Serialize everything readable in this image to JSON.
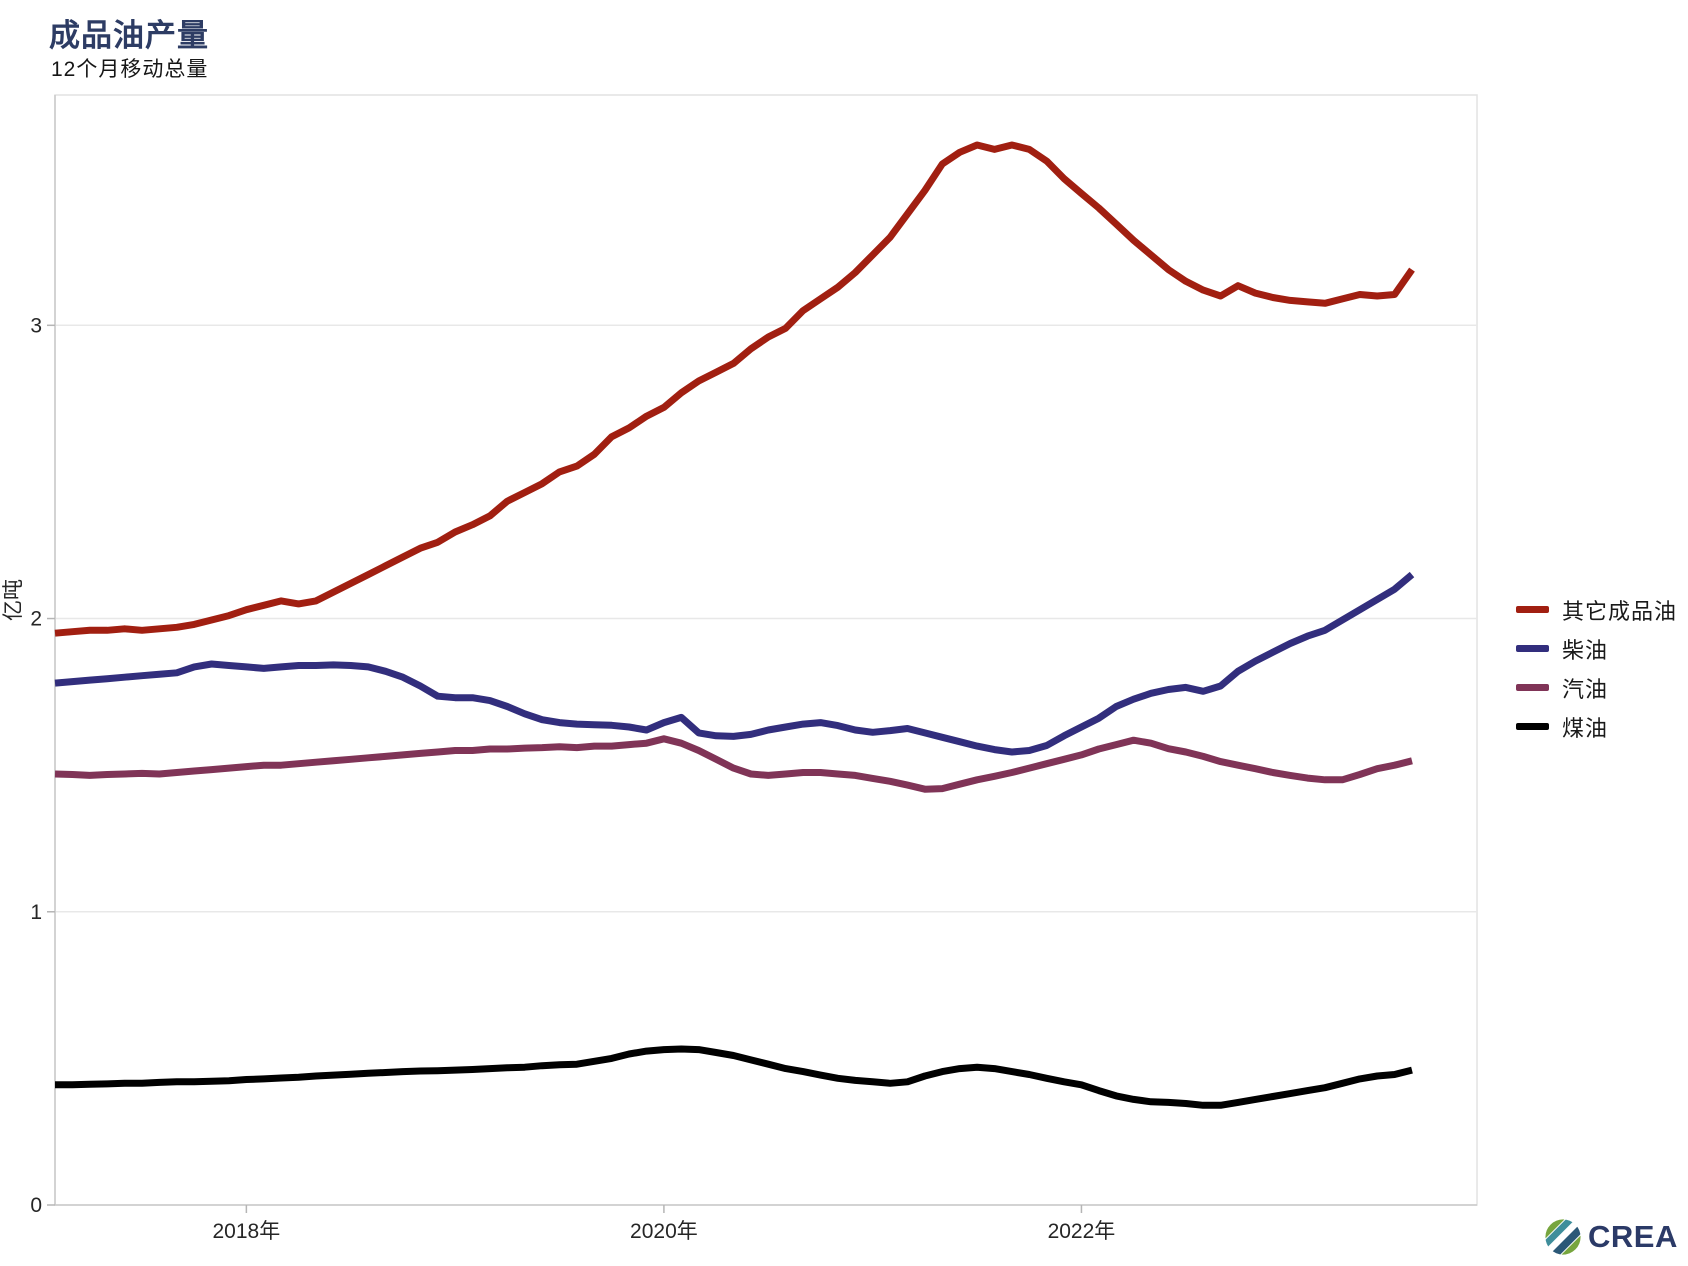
{
  "chart_data": {
    "type": "line",
    "title": "成品油产量",
    "subtitle": "12个月移动总量",
    "ylabel": "亿吨",
    "ylim": [
      0,
      3.79
    ],
    "yticks": [
      0,
      1,
      2,
      3
    ],
    "grid": "horizontal",
    "legend_position": "right",
    "x_frequency": "monthly",
    "x_start": "2017-02",
    "x_end": "2023-08",
    "x_ticks": [
      {
        "label": "2018年",
        "month_index": 11
      },
      {
        "label": "2020年",
        "month_index": 35
      },
      {
        "label": "2022年",
        "month_index": 59
      }
    ],
    "series": [
      {
        "name": "其它成品油",
        "color": "#a11f11",
        "values": [
          1.95,
          1.955,
          1.96,
          1.96,
          1.965,
          1.96,
          1.965,
          1.97,
          1.98,
          1.995,
          2.01,
          2.03,
          2.045,
          2.06,
          2.05,
          2.06,
          2.09,
          2.12,
          2.15,
          2.18,
          2.21,
          2.24,
          2.26,
          2.295,
          2.32,
          2.35,
          2.4,
          2.43,
          2.46,
          2.5,
          2.52,
          2.56,
          2.62,
          2.65,
          2.69,
          2.72,
          2.77,
          2.81,
          2.84,
          2.87,
          2.92,
          2.96,
          2.99,
          3.05,
          3.09,
          3.13,
          3.18,
          3.24,
          3.3,
          3.38,
          3.46,
          3.55,
          3.59,
          3.615,
          3.6,
          3.615,
          3.6,
          3.56,
          3.5,
          3.45,
          3.4,
          3.345,
          3.29,
          3.24,
          3.19,
          3.15,
          3.12,
          3.1,
          3.135,
          3.11,
          3.095,
          3.085,
          3.08,
          3.075,
          3.09,
          3.105,
          3.1,
          3.105,
          3.19
        ]
      },
      {
        "name": "柴油",
        "color": "#322e7d",
        "values": [
          1.78,
          1.785,
          1.79,
          1.795,
          1.8,
          1.805,
          1.81,
          1.815,
          1.835,
          1.845,
          1.84,
          1.835,
          1.83,
          1.835,
          1.84,
          1.84,
          1.842,
          1.84,
          1.835,
          1.82,
          1.8,
          1.77,
          1.735,
          1.73,
          1.73,
          1.72,
          1.7,
          1.675,
          1.655,
          1.645,
          1.64,
          1.638,
          1.636,
          1.63,
          1.62,
          1.645,
          1.663,
          1.61,
          1.6,
          1.598,
          1.605,
          1.62,
          1.63,
          1.64,
          1.645,
          1.635,
          1.62,
          1.612,
          1.618,
          1.625,
          1.61,
          1.595,
          1.58,
          1.565,
          1.553,
          1.545,
          1.55,
          1.567,
          1.6,
          1.63,
          1.66,
          1.7,
          1.725,
          1.745,
          1.758,
          1.765,
          1.752,
          1.77,
          1.82,
          1.855,
          1.885,
          1.915,
          1.94,
          1.96,
          1.995,
          2.03,
          2.065,
          2.1,
          2.15
        ]
      },
      {
        "name": "汽油",
        "color": "#803457",
        "values": [
          1.47,
          1.468,
          1.465,
          1.468,
          1.47,
          1.472,
          1.47,
          1.475,
          1.48,
          1.485,
          1.49,
          1.495,
          1.5,
          1.5,
          1.505,
          1.51,
          1.515,
          1.52,
          1.525,
          1.53,
          1.535,
          1.54,
          1.545,
          1.55,
          1.55,
          1.555,
          1.555,
          1.558,
          1.56,
          1.563,
          1.56,
          1.565,
          1.565,
          1.57,
          1.575,
          1.59,
          1.575,
          1.55,
          1.52,
          1.49,
          1.47,
          1.465,
          1.47,
          1.475,
          1.475,
          1.47,
          1.465,
          1.455,
          1.445,
          1.432,
          1.418,
          1.42,
          1.435,
          1.45,
          1.462,
          1.475,
          1.49,
          1.505,
          1.52,
          1.535,
          1.555,
          1.57,
          1.585,
          1.575,
          1.556,
          1.545,
          1.53,
          1.512,
          1.5,
          1.488,
          1.475,
          1.465,
          1.456,
          1.45,
          1.45,
          1.468,
          1.488,
          1.5,
          1.515
        ]
      },
      {
        "name": "煤油",
        "color": "#000000",
        "values": [
          0.41,
          0.41,
          0.412,
          0.413,
          0.415,
          0.415,
          0.418,
          0.42,
          0.42,
          0.422,
          0.424,
          0.428,
          0.43,
          0.433,
          0.436,
          0.44,
          0.443,
          0.446,
          0.449,
          0.452,
          0.455,
          0.457,
          0.458,
          0.46,
          0.462,
          0.465,
          0.468,
          0.47,
          0.475,
          0.478,
          0.48,
          0.49,
          0.5,
          0.515,
          0.525,
          0.53,
          0.532,
          0.53,
          0.52,
          0.51,
          0.495,
          0.48,
          0.465,
          0.455,
          0.443,
          0.432,
          0.425,
          0.42,
          0.415,
          0.42,
          0.44,
          0.455,
          0.465,
          0.47,
          0.465,
          0.455,
          0.445,
          0.432,
          0.42,
          0.41,
          0.39,
          0.372,
          0.36,
          0.352,
          0.35,
          0.346,
          0.34,
          0.34,
          0.35,
          0.36,
          0.37,
          0.38,
          0.39,
          0.4,
          0.415,
          0.43,
          0.44,
          0.445,
          0.46
        ]
      }
    ],
    "style": {
      "title_color": "#2d3c64",
      "grid_color": "#e8e8e8",
      "border_color": "#e2e2e2",
      "axis_color": "#c9c9c9",
      "tick_color": "#b5b5b5",
      "tick_label_color": "#262626",
      "line_width": 7
    }
  },
  "footer": {
    "logo_text": "CREA"
  }
}
